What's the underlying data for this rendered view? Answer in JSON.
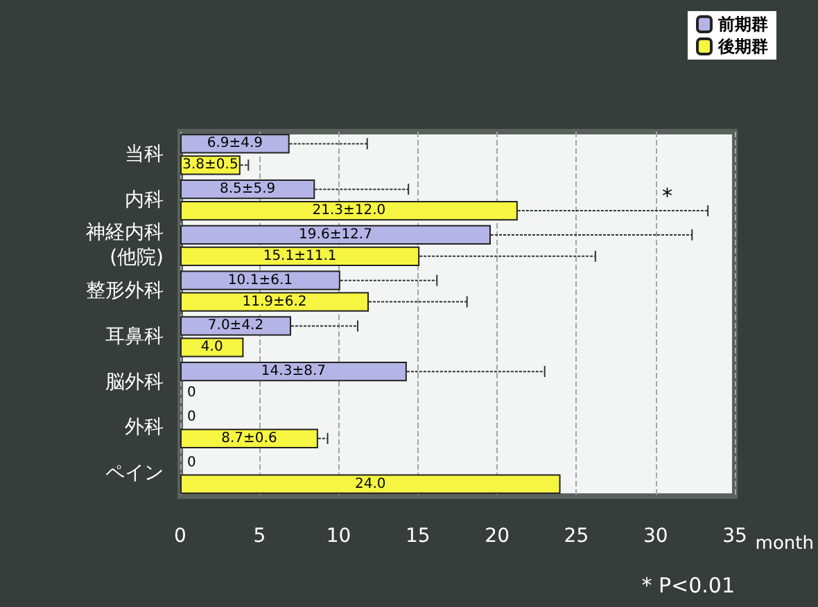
{
  "chart_data": {
    "type": "bar",
    "orientation": "horizontal",
    "xlabel": "month",
    "categories": [
      "当科",
      "内科",
      "神経内科\n(他院)",
      "整形外科",
      "耳鼻科",
      "脳外科",
      "外科",
      "ペイン"
    ],
    "series": [
      {
        "name": "前期群",
        "color": "#b4b4e6",
        "values": [
          6.9,
          8.5,
          19.6,
          10.1,
          7.0,
          14.3,
          0,
          0
        ],
        "errors": [
          [
            6.9,
            11.8
          ],
          [
            8.5,
            14.4
          ],
          [
            19.6,
            32.3
          ],
          [
            10.1,
            16.2
          ],
          [
            7.0,
            11.2
          ],
          [
            14.3,
            23.0
          ],
          null,
          null
        ],
        "value_labels": [
          "6.9±4.9",
          "8.5±5.9",
          "19.6±12.7",
          "10.1±6.1",
          "7.0±4.2",
          "14.3±8.7",
          "0",
          "0"
        ]
      },
      {
        "name": "後期群",
        "color": "#f5f542",
        "values": [
          3.8,
          21.3,
          15.1,
          11.9,
          4.0,
          0,
          8.7,
          24.0
        ],
        "errors": [
          [
            3.8,
            4.3
          ],
          [
            21.3,
            33.3
          ],
          [
            15.1,
            26.2
          ],
          [
            11.9,
            18.1
          ],
          null,
          null,
          [
            8.7,
            9.3
          ],
          null
        ],
        "value_labels": [
          "3.8±0.5",
          "21.3±12.0",
          "15.1±11.1",
          "11.9±6.2",
          "4.0",
          "0",
          "8.7±0.6",
          "24.0"
        ]
      }
    ],
    "xlim": [
      0,
      35
    ],
    "xticks": [
      0,
      5,
      10,
      15,
      20,
      25,
      30,
      35
    ],
    "grid": "x",
    "legend": "top right",
    "annotations": [
      "*",
      "* P<0.01"
    ]
  }
}
